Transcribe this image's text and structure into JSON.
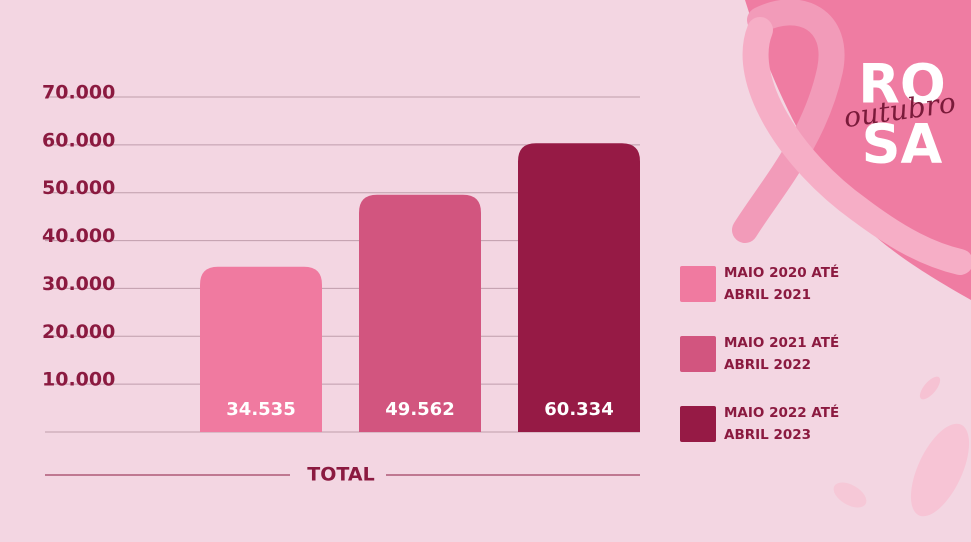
{
  "chart_data": {
    "type": "bar",
    "x_label": "TOTAL",
    "categories": [
      "TOTAL"
    ],
    "series": [
      {
        "name": "MAIO 2020 ATÉ ABRIL 2021",
        "color": "#f07aa0",
        "values": [
          34535
        ],
        "value_labels": [
          "34.535"
        ]
      },
      {
        "name": "MAIO 2021 ATÉ ABRIL 2022",
        "color": "#d2557f",
        "values": [
          49562
        ],
        "value_labels": [
          "49.562"
        ]
      },
      {
        "name": "MAIO 2022 ATÉ ABRIL 2023",
        "color": "#961a45",
        "values": [
          60334
        ],
        "value_labels": [
          "60.334"
        ]
      }
    ],
    "ylim": [
      0,
      70000
    ],
    "yticks": [
      {
        "value": 10000,
        "label": "10.000"
      },
      {
        "value": 20000,
        "label": "20.000"
      },
      {
        "value": 30000,
        "label": "30.000"
      },
      {
        "value": 40000,
        "label": "40.000"
      },
      {
        "value": 50000,
        "label": "50.000"
      },
      {
        "value": 60000,
        "label": "60.000"
      },
      {
        "value": 70000,
        "label": "70.000"
      }
    ],
    "grid": true,
    "badge_lines": [
      "RO",
      "SA"
    ],
    "badge_script": "outubro"
  }
}
